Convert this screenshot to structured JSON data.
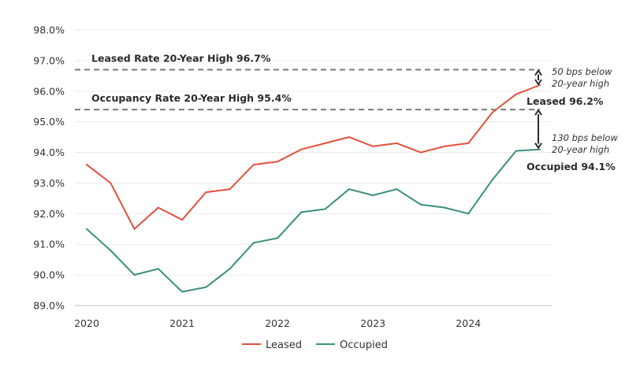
{
  "chart_data": {
    "type": "line",
    "title": "",
    "xlabel": "",
    "ylabel": "",
    "ylim": [
      89.0,
      98.0
    ],
    "y_ticks": [
      89.0,
      90.0,
      91.0,
      92.0,
      93.0,
      94.0,
      95.0,
      96.0,
      97.0,
      98.0
    ],
    "y_tick_labels": [
      "89.0%",
      "90.0%",
      "91.0%",
      "92.0%",
      "93.0%",
      "94.0%",
      "95.0%",
      "96.0%",
      "97.0%",
      "98.0%"
    ],
    "x_tick_labels": [
      "2020",
      "2021",
      "2022",
      "2023",
      "2024"
    ],
    "x_tick_positions": [
      0,
      4,
      8,
      12,
      16
    ],
    "x": [
      0,
      1,
      2,
      3,
      4,
      5,
      6,
      7,
      8,
      9,
      10,
      11,
      12,
      13,
      14,
      15,
      16,
      17,
      18,
      19
    ],
    "grid": "horizontal",
    "legend_position": "bottom-center",
    "series": [
      {
        "name": "Leased",
        "color": "#e2513a",
        "values": [
          93.6,
          93.0,
          91.5,
          92.2,
          91.8,
          92.7,
          92.8,
          93.6,
          93.7,
          94.1,
          94.3,
          94.5,
          94.2,
          94.3,
          94.0,
          94.2,
          94.3,
          95.3,
          95.9,
          96.2
        ]
      },
      {
        "name": "Occupied",
        "color": "#3a8f7e",
        "values": [
          91.5,
          90.8,
          90.0,
          90.2,
          89.45,
          89.6,
          90.2,
          91.05,
          91.2,
          92.05,
          92.15,
          92.8,
          92.6,
          92.8,
          92.3,
          92.2,
          92.0,
          93.1,
          94.05,
          94.1
        ]
      }
    ],
    "reference_lines": [
      {
        "label": "Leased Rate 20-Year High 96.7%",
        "value": 96.7
      },
      {
        "label": "Occupancy Rate 20-Year High 95.4%",
        "value": 95.4
      }
    ],
    "end_labels": [
      {
        "label": "Leased 96.2%"
      },
      {
        "label": "Occupied 94.1%"
      }
    ],
    "notes": [
      {
        "lines": [
          "50 bps below",
          "20-year high"
        ]
      },
      {
        "lines": [
          "130 bps below",
          "20-year high"
        ]
      }
    ]
  },
  "colors": {
    "grid": "#ebebeb",
    "axis": "#bfbfbf",
    "reference": "#7a7a7a",
    "arrow": "#2b2b2b"
  }
}
